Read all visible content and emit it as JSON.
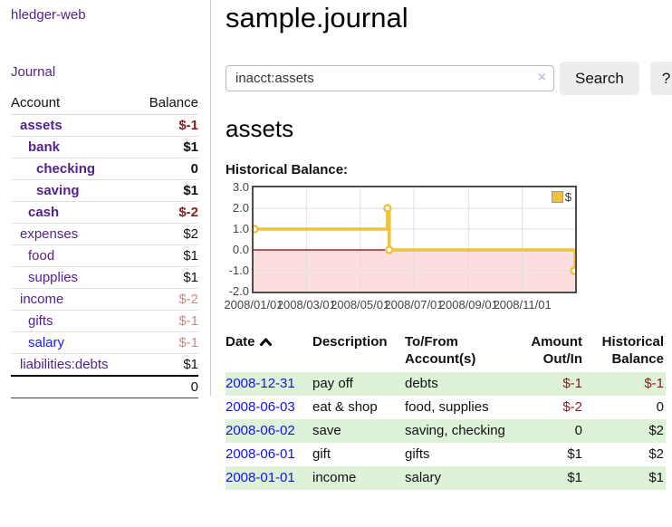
{
  "colors": {
    "link_purple": "#55228b",
    "link_blue": "#1414e0",
    "negative_strong": "#8b1a1a",
    "negative_soft": "#c48989",
    "row_stripe_green": "#ddf2d8",
    "chart_line_yellow": "#edc240",
    "chart_negative_fill": "#fcdede",
    "chart_zero_line": "#8b0000",
    "chart_border": "#4d4d4d"
  },
  "sidebar": {
    "app_title": "hledger-web",
    "journal_link": "Journal",
    "accounts": {
      "col_account": "Account",
      "col_balance": "Balance",
      "rows": [
        {
          "name": "assets",
          "balance": "$-1",
          "depth": 1,
          "bold": true,
          "negative": "strong"
        },
        {
          "name": "bank",
          "balance": "$1",
          "depth": 2,
          "bold": true,
          "negative": "none"
        },
        {
          "name": "checking",
          "balance": "0",
          "depth": 3,
          "bold": true,
          "negative": "none"
        },
        {
          "name": "saving",
          "balance": "$1",
          "depth": 3,
          "bold": true,
          "negative": "none"
        },
        {
          "name": "cash",
          "balance": "$-2",
          "depth": 2,
          "bold": true,
          "negative": "strong"
        },
        {
          "name": "expenses",
          "balance": "$2",
          "depth": 1,
          "bold": false,
          "negative": "none"
        },
        {
          "name": "food",
          "balance": "$1",
          "depth": 2,
          "bold": false,
          "negative": "none"
        },
        {
          "name": "supplies",
          "balance": "$1",
          "depth": 2,
          "bold": false,
          "negative": "none"
        },
        {
          "name": "income",
          "balance": "$-2",
          "depth": 1,
          "bold": false,
          "negative": "soft"
        },
        {
          "name": "gifts",
          "balance": "$-1",
          "depth": 2,
          "bold": false,
          "negative": "soft"
        },
        {
          "name": "salary",
          "balance": "$-1",
          "depth": 2,
          "bold": false,
          "negative": "soft"
        },
        {
          "name": "liabilities:debts",
          "balance": "$1",
          "depth": 1,
          "bold": false,
          "negative": "none"
        }
      ],
      "total": "0"
    }
  },
  "main": {
    "title": "sample.journal",
    "search": {
      "query": "inacct:assets",
      "clear_icon": "×",
      "search_label": "Search",
      "help_label": "?"
    },
    "account_heading": "assets",
    "chart_label": "Historical Balance:"
  },
  "chart_data": {
    "type": "line",
    "step": true,
    "title": "Historical Balance:",
    "series": [
      {
        "name": "$",
        "color": "#edc240",
        "points": [
          {
            "date": "2008-01-01",
            "day": 0,
            "value": 1
          },
          {
            "date": "2008-06-01",
            "day": 152,
            "value": 2
          },
          {
            "date": "2008-06-03",
            "day": 154,
            "value": 0
          },
          {
            "date": "2008-12-31",
            "day": 365,
            "value": -1
          }
        ]
      }
    ],
    "x_ticks": [
      {
        "label": "2008/01/01",
        "day": 0
      },
      {
        "label": "2008/03/01",
        "day": 60
      },
      {
        "label": "2008/05/01",
        "day": 121
      },
      {
        "label": "2008/07/01",
        "day": 182
      },
      {
        "label": "2008/09/01",
        "day": 244
      },
      {
        "label": "2008/11/01",
        "day": 305
      }
    ],
    "y_ticks": [
      "3.0",
      "2.0",
      "1.0",
      "0.0",
      "-1.0",
      "-2.0"
    ],
    "ylim": [
      -2,
      3
    ],
    "xlim_days": [
      0,
      365
    ],
    "grid": true,
    "legend_position": "top-right",
    "legend": {
      "label": "$",
      "swatch_color": "#edc240"
    }
  },
  "register": {
    "columns": [
      "Date",
      "Description",
      "To/From Account(s)",
      "Amount Out/In",
      "Historical Balance"
    ],
    "sort_column": "Date",
    "sort_direction": "ascending",
    "rows": [
      {
        "date": "2008-12-31",
        "description": "pay off",
        "accounts": "debts",
        "amount": "$-1",
        "balance": "$-1",
        "amount_negative": true,
        "balance_negative": true
      },
      {
        "date": "2008-06-03",
        "description": "eat & shop",
        "accounts": "food, supplies",
        "amount": "$-2",
        "balance": "0",
        "amount_negative": true,
        "balance_negative": false
      },
      {
        "date": "2008-06-02",
        "description": "save",
        "accounts": "saving, checking",
        "amount": "0",
        "balance": "$2",
        "amount_negative": false,
        "balance_negative": false
      },
      {
        "date": "2008-06-01",
        "description": "gift",
        "accounts": "gifts",
        "amount": "$1",
        "balance": "$2",
        "amount_negative": false,
        "balance_negative": false
      },
      {
        "date": "2008-01-01",
        "description": "income",
        "accounts": "salary",
        "amount": "$1",
        "balance": "$1",
        "amount_negative": false,
        "balance_negative": false
      }
    ]
  }
}
